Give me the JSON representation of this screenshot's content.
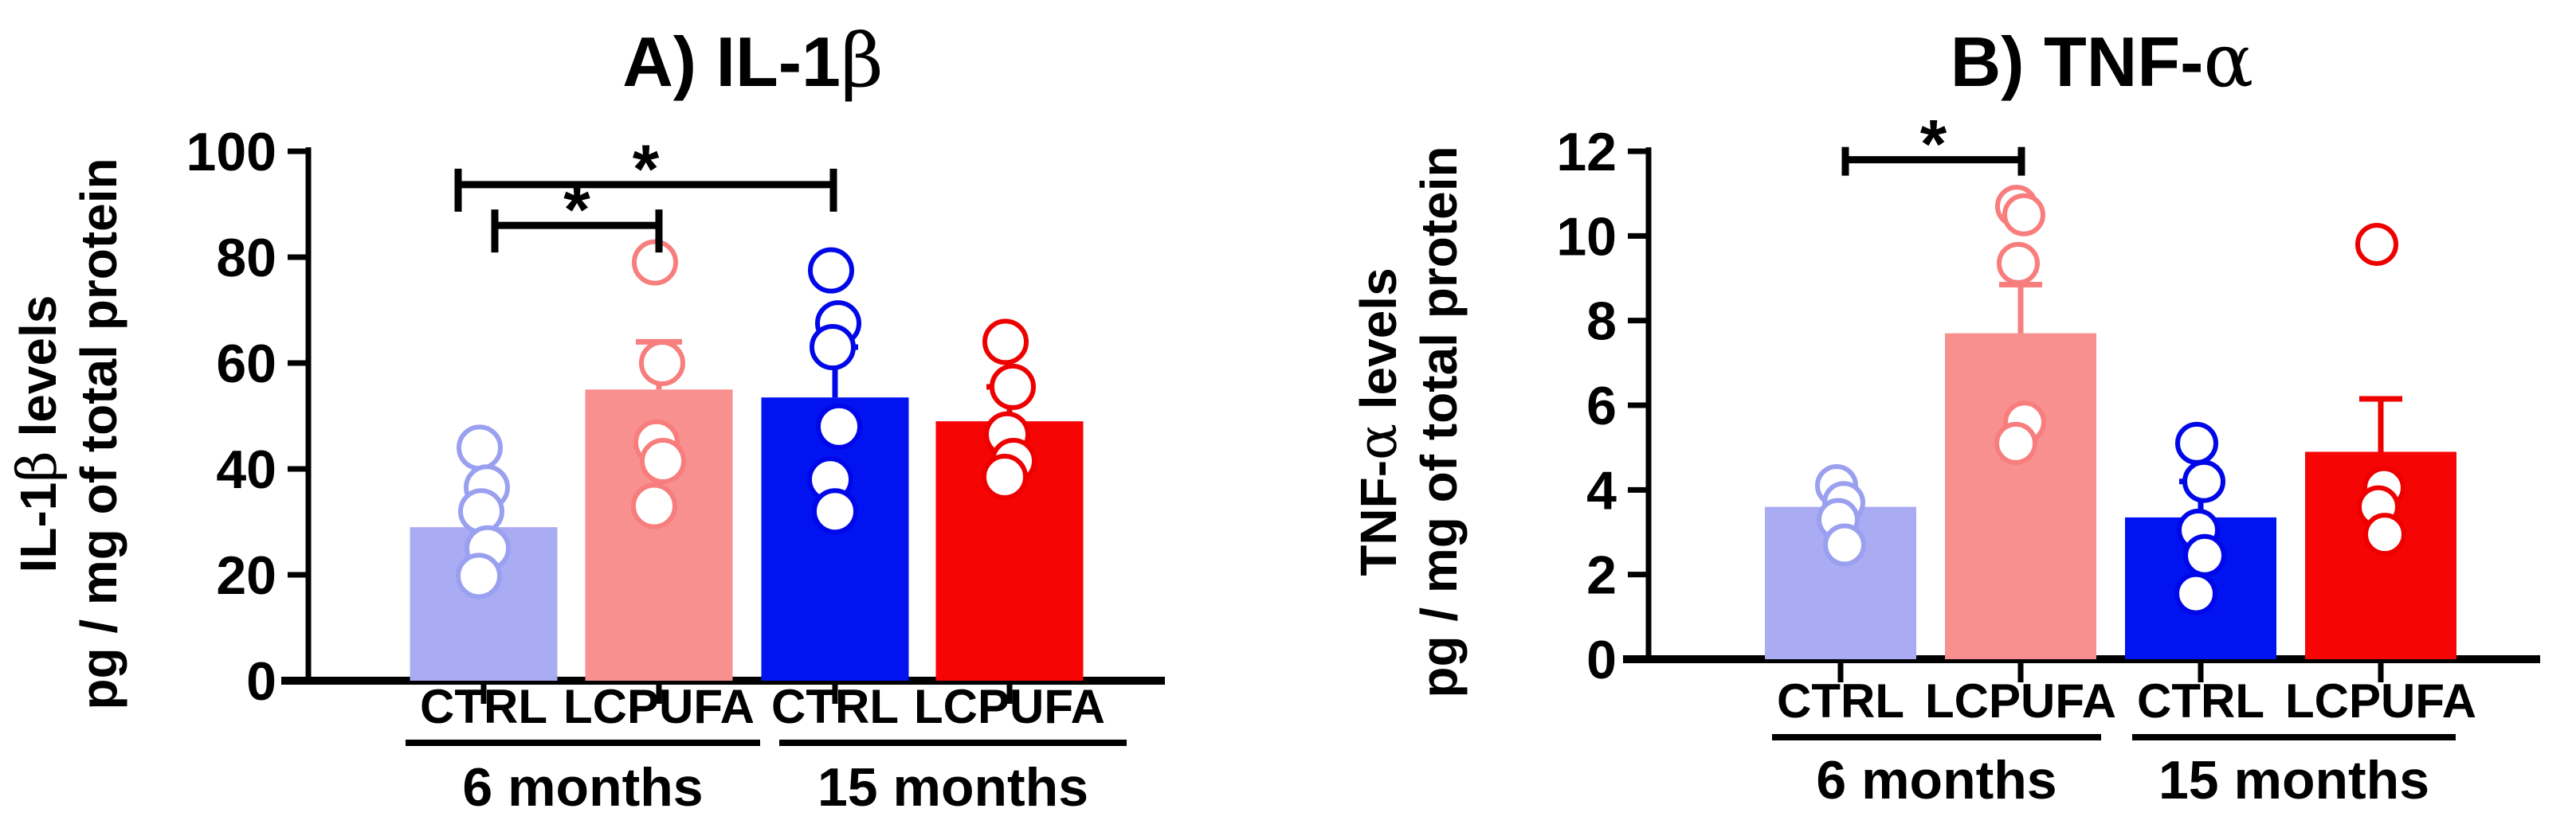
{
  "figure_background": "#ffffff",
  "chart_data": [
    {
      "type": "bar",
      "panel_label": "A",
      "title": "A) IL-1β",
      "ylabel_line1": "IL-1β levels",
      "ylabel_line2": "pg / mg of total protein",
      "ylim": [
        0,
        100
      ],
      "yticks": [
        0,
        20,
        40,
        60,
        80,
        100
      ],
      "categories": [
        "CTRL",
        "LCPUFA",
        "CTRL",
        "LCPUFA"
      ],
      "groups": [
        {
          "label": "6 months",
          "bars": [
            0,
            1
          ]
        },
        {
          "label": "15 months",
          "bars": [
            2,
            3
          ]
        }
      ],
      "bars": [
        {
          "label": "CTRL",
          "group": "6 months",
          "mean": 29,
          "sem": 0,
          "fill": "#a9abf3",
          "point_color": "#9aa0ef",
          "points": [
            44,
            36.5,
            32,
            25,
            19.8
          ]
        },
        {
          "label": "LCPUFA",
          "group": "6 months",
          "mean": 55,
          "sem": 9,
          "fill": "#f99090",
          "point_color": "#f87d7d",
          "points": [
            79,
            60,
            45,
            41.5,
            33
          ]
        },
        {
          "label": "CTRL",
          "group": "15 months",
          "mean": 53.5,
          "sem": 9.5,
          "fill": "#0013f0",
          "point_color": "#0008e8",
          "points": [
            77.5,
            67.5,
            63,
            48,
            38,
            32
          ]
        },
        {
          "label": "LCPUFA",
          "group": "15 months",
          "mean": 49,
          "sem": 6.5,
          "fill": "#f60505",
          "point_color": "#ee0000",
          "points": [
            64,
            55.5,
            46.5,
            41.5,
            38.5
          ]
        }
      ],
      "significance": [
        {
          "from": 0,
          "to": 2,
          "y": 93.7,
          "label": "*"
        },
        {
          "from": 0,
          "to": 1,
          "y": 86,
          "label": "*"
        }
      ],
      "legend": "none",
      "grid": false
    },
    {
      "type": "bar",
      "panel_label": "B",
      "title": "B) TNF-α",
      "ylabel_line1": "TNF-α levels",
      "ylabel_line2": "pg / mg of total protein",
      "ylim": [
        0,
        12
      ],
      "yticks": [
        0,
        2,
        4,
        6,
        8,
        10,
        12
      ],
      "categories": [
        "CTRL",
        "LCPUFA",
        "CTRL",
        "LCPUFA"
      ],
      "groups": [
        {
          "label": "6 months",
          "bars": [
            0,
            1
          ]
        },
        {
          "label": "15 months",
          "bars": [
            2,
            3
          ]
        }
      ],
      "bars": [
        {
          "label": "CTRL",
          "group": "6 months",
          "mean": 3.6,
          "sem": 0,
          "fill": "#a9abf3",
          "point_color": "#9aa0ef",
          "points": [
            4.1,
            3.7,
            3.3,
            2.7
          ]
        },
        {
          "label": "LCPUFA",
          "group": "6 months",
          "mean": 7.7,
          "sem": 1.15,
          "fill": "#f99090",
          "point_color": "#f87d7d",
          "points": [
            10.7,
            10.5,
            9.35,
            5.6,
            5.1
          ]
        },
        {
          "label": "CTRL",
          "group": "15 months",
          "mean": 3.35,
          "sem": 0.85,
          "fill": "#0013f0",
          "point_color": "#0008e8",
          "points": [
            5.1,
            4.2,
            3.05,
            2.45,
            1.55
          ]
        },
        {
          "label": "LCPUFA",
          "group": "15 months",
          "mean": 4.9,
          "sem": 1.25,
          "fill": "#f60505",
          "point_color": "#ee0000",
          "points": [
            9.8,
            4.05,
            3.6,
            2.95
          ]
        }
      ],
      "significance": [
        {
          "from": 0,
          "to": 1,
          "y": 11.8,
          "label": "*"
        }
      ],
      "legend": "none",
      "grid": false
    }
  ]
}
